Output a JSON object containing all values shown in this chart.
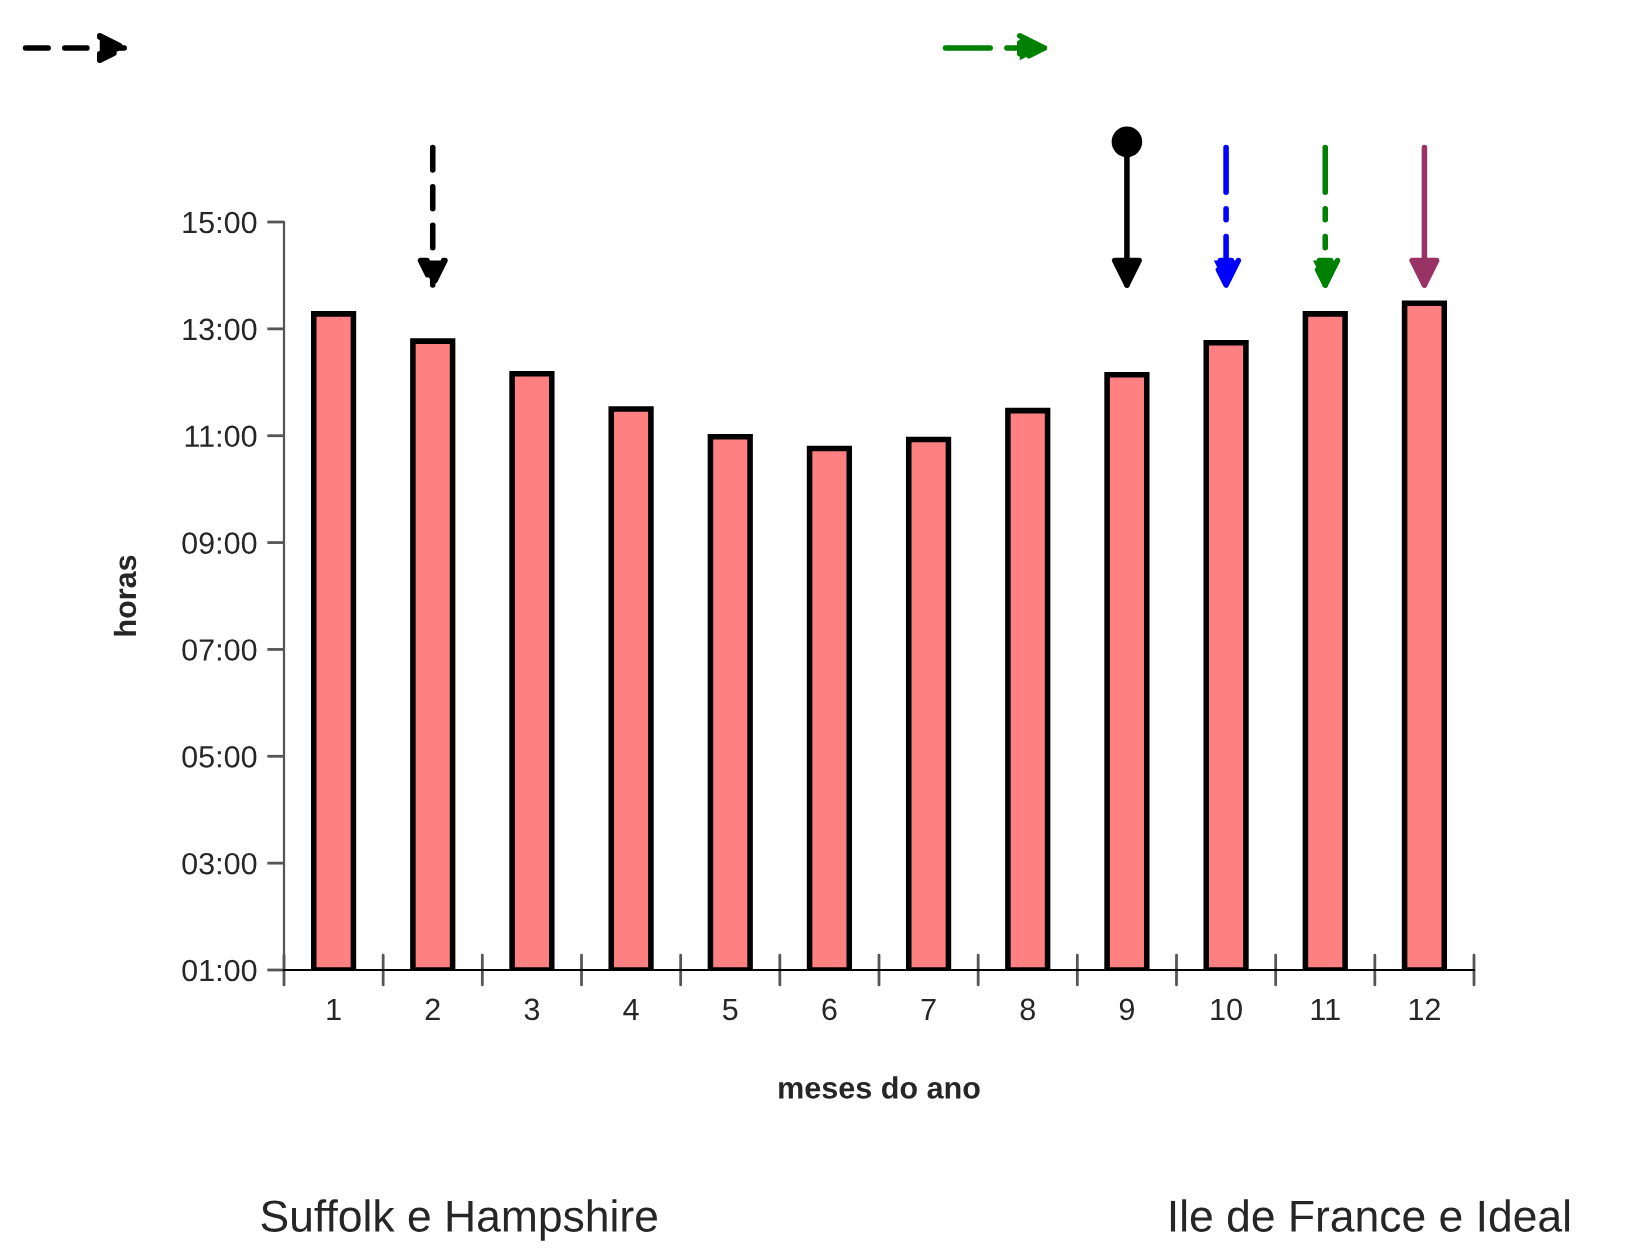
{
  "chart_data": {
    "type": "bar",
    "xlabel": "meses do ano",
    "ylabel": "horas",
    "categories": [
      "1",
      "2",
      "3",
      "4",
      "5",
      "6",
      "7",
      "8",
      "9",
      "10",
      "11",
      "12"
    ],
    "values": [
      13.28,
      12.77,
      12.16,
      11.5,
      10.98,
      10.76,
      10.93,
      11.47,
      12.14,
      12.74,
      13.28,
      13.48
    ],
    "color": "#ff8080",
    "ylim": [
      1,
      15
    ],
    "yticks": [
      {
        "value": 1,
        "label": "01:00"
      },
      {
        "value": 3,
        "label": "03:00"
      },
      {
        "value": 5,
        "label": "05:00"
      },
      {
        "value": 7,
        "label": "07:00"
      },
      {
        "value": 9,
        "label": "09:00"
      },
      {
        "value": 11,
        "label": "11:00"
      },
      {
        "value": 13,
        "label": "13:00"
      },
      {
        "value": 15,
        "label": "15:00"
      }
    ],
    "grid": false,
    "annotations": [
      "Suffolk e Hampshire",
      "Ile de France e Ideal"
    ]
  }
}
